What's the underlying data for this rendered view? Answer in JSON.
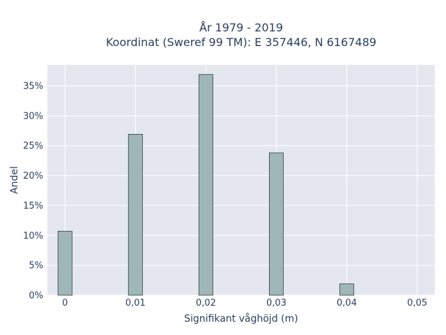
{
  "chart_data": {
    "type": "bar",
    "title_lines": [
      "År 1979 - 2019",
      "Koordinat (Sweref 99 TM): E 357446, N 6167489"
    ],
    "xlabel": "Signifikant våghöjd (m)",
    "ylabel": "Andel",
    "x": [
      0,
      0.01,
      0.02,
      0.03,
      0.04
    ],
    "values": [
      10.7,
      26.9,
      36.9,
      23.8,
      1.9
    ],
    "xlim": [
      -0.0025,
      0.0525
    ],
    "ylim": [
      0,
      38.5
    ],
    "x_ticks": [
      0,
      0.01,
      0.02,
      0.03,
      0.04,
      0.05
    ],
    "x_tick_labels": [
      "0",
      "0,01",
      "0,02",
      "0,03",
      "0,04",
      "0,05"
    ],
    "y_ticks": [
      0,
      5,
      10,
      15,
      20,
      25,
      30,
      35
    ],
    "y_tick_labels": [
      "0%",
      "5%",
      "10%",
      "15%",
      "20%",
      "25%",
      "30%",
      "35%"
    ],
    "bar_width": 0.002,
    "grid": true,
    "colors": {
      "plot_background": "#e5e7f0",
      "bar_fill": "#a0b7b9",
      "bar_outline": "#2f3f3f",
      "text": "#2a3f5f"
    }
  }
}
